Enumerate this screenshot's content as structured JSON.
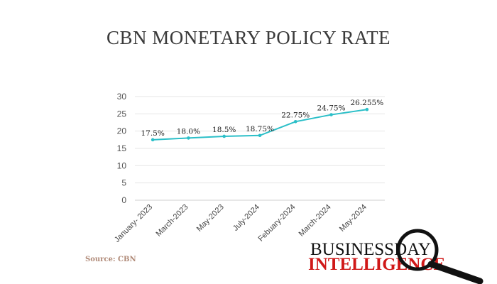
{
  "chart_data": {
    "type": "line",
    "title": "CBN MONETARY POLICY RATE",
    "categories": [
      "January- 2023",
      "March-2023",
      "May-2023",
      "July-2024",
      "Febuary-2024",
      "March-2024",
      "May-2024"
    ],
    "series": [
      {
        "values": [
          17.5,
          18.0,
          18.5,
          18.75,
          22.75,
          24.75,
          26.255
        ]
      }
    ],
    "data_labels": [
      "17.5%",
      "18.0%",
      "18.5%",
      "18.75%",
      "22.75%",
      "24.75%",
      "26.255%"
    ],
    "yticks": [
      0,
      5,
      10,
      15,
      20,
      25,
      30
    ],
    "ylim": [
      0,
      30
    ],
    "grid": true,
    "line_color": "#2bbfc8"
  },
  "source": "Source: CBN",
  "logo": {
    "line1": "BUSINESSDAY",
    "line2": "INTELLIGENCE"
  }
}
